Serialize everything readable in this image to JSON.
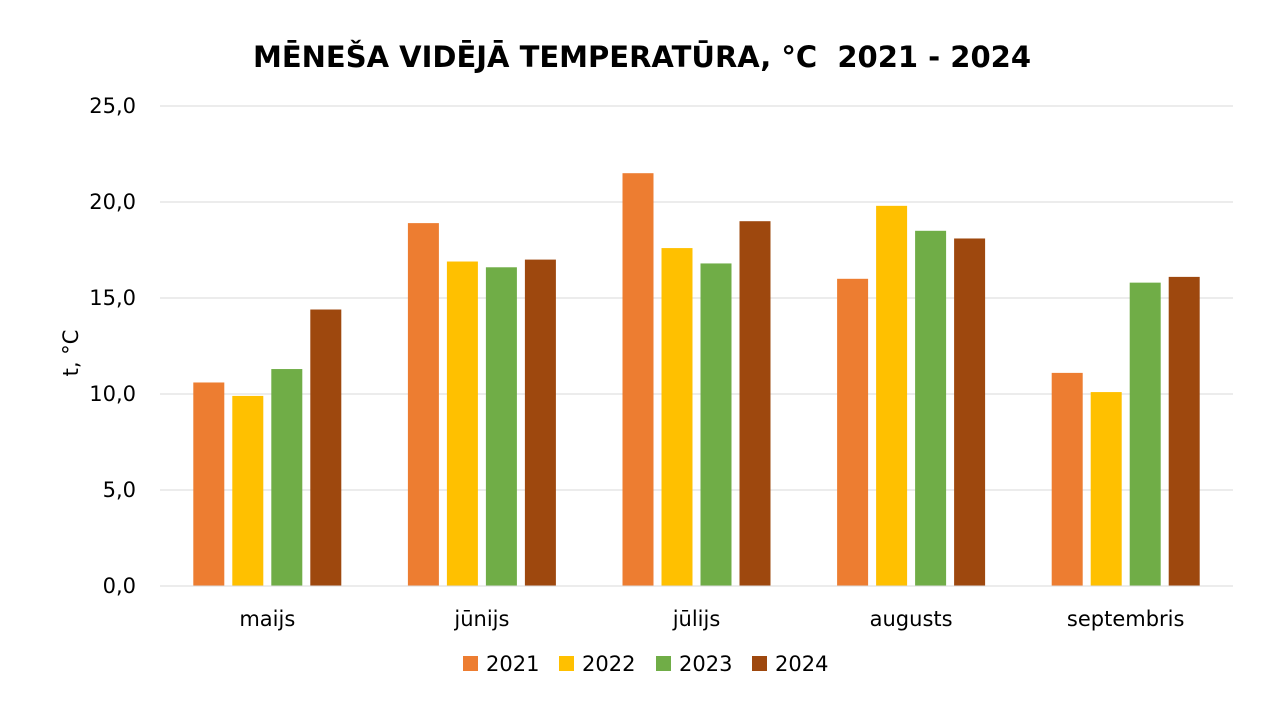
{
  "chart_data": {
    "type": "bar",
    "title": "MĒNEŠA VIDĒJĀ TEMPERATŪRA, °C  2021 - 2024",
    "xlabel": "",
    "ylabel": "t, °C",
    "ylim": [
      0,
      25
    ],
    "yticks": [
      "0,0",
      "5,0",
      "10,0",
      "15,0",
      "20,0",
      "25,0"
    ],
    "grid": true,
    "legend_position": "bottom",
    "categories": [
      "maijs",
      "jūnijs",
      "jūlijs",
      "augusts",
      "septembris"
    ],
    "series": [
      {
        "name": "2021",
        "color": "#ED7D31",
        "values": [
          10.6,
          18.9,
          21.5,
          16.0,
          11.1
        ]
      },
      {
        "name": "2022",
        "color": "#FFC000",
        "values": [
          9.9,
          16.9,
          17.6,
          19.8,
          10.1
        ]
      },
      {
        "name": "2023",
        "color": "#70AD47",
        "values": [
          11.3,
          16.6,
          16.8,
          18.5,
          15.8
        ]
      },
      {
        "name": "2024",
        "color": "#9E480E",
        "values": [
          14.4,
          17.0,
          19.0,
          18.1,
          16.1
        ]
      }
    ]
  }
}
